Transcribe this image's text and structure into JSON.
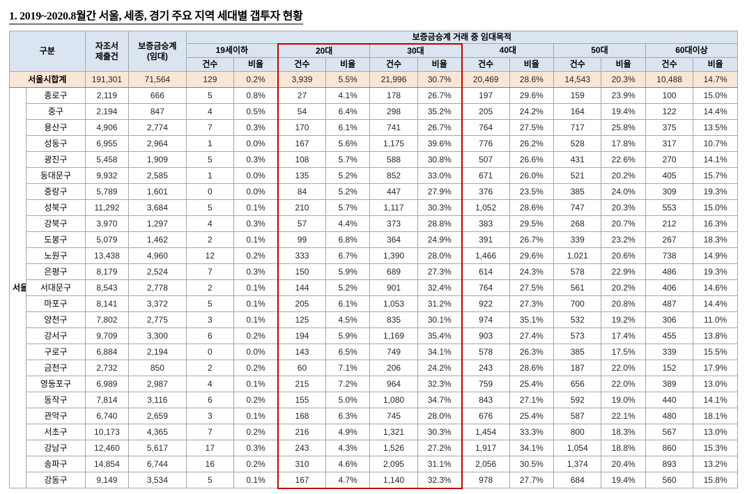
{
  "title": "1. 2019~2020.8월간 서울, 세종, 경기 주요 지역 세대별 갭투자 현황",
  "table": {
    "header": {
      "gubun": "구분",
      "report": "자조서\n제출건",
      "deposit": "보증금승계\n(임대)",
      "group_title": "보증금승계 거래 중 임대목적",
      "age_groups": [
        "19세이하",
        "20대",
        "30대",
        "40대",
        "50대",
        "60대이상"
      ],
      "sub_cols": [
        "건수",
        "비율"
      ]
    },
    "region_label": "서울",
    "header_color": "#dbe5f1",
    "highlight_color": "#fbe5d6",
    "red_box_color": "#c00000",
    "total_row": {
      "name": "서울시합계",
      "values": [
        "191,301",
        "71,564",
        "129",
        "0.2%",
        "3,939",
        "5.5%",
        "21,996",
        "30.7%",
        "20,469",
        "28.6%",
        "14,543",
        "20.3%",
        "10,488",
        "14.7%"
      ]
    },
    "rows": [
      {
        "name": "종로구",
        "values": [
          "2,119",
          "666",
          "5",
          "0.8%",
          "27",
          "4.1%",
          "178",
          "26.7%",
          "197",
          "29.6%",
          "159",
          "23.9%",
          "100",
          "15.0%"
        ]
      },
      {
        "name": "중구",
        "values": [
          "2,194",
          "847",
          "4",
          "0.5%",
          "54",
          "6.4%",
          "298",
          "35.2%",
          "205",
          "24.2%",
          "164",
          "19.4%",
          "122",
          "14.4%"
        ]
      },
      {
        "name": "용산구",
        "values": [
          "4,906",
          "2,774",
          "7",
          "0.3%",
          "170",
          "6.1%",
          "741",
          "26.7%",
          "764",
          "27.5%",
          "717",
          "25.8%",
          "375",
          "13.5%"
        ]
      },
      {
        "name": "성동구",
        "values": [
          "6,955",
          "2,964",
          "1",
          "0.0%",
          "167",
          "5.6%",
          "1,175",
          "39.6%",
          "776",
          "26.2%",
          "528",
          "17.8%",
          "317",
          "10.7%"
        ]
      },
      {
        "name": "광진구",
        "values": [
          "5,458",
          "1,909",
          "5",
          "0.3%",
          "108",
          "5.7%",
          "588",
          "30.8%",
          "507",
          "26.6%",
          "431",
          "22.6%",
          "270",
          "14.1%"
        ]
      },
      {
        "name": "동대문구",
        "values": [
          "9,932",
          "2,585",
          "1",
          "0.0%",
          "135",
          "5.2%",
          "852",
          "33.0%",
          "671",
          "26.0%",
          "521",
          "20.2%",
          "405",
          "15.7%"
        ]
      },
      {
        "name": "중랑구",
        "values": [
          "5,789",
          "1,601",
          "0",
          "0.0%",
          "84",
          "5.2%",
          "447",
          "27.9%",
          "376",
          "23.5%",
          "385",
          "24.0%",
          "309",
          "19.3%"
        ]
      },
      {
        "name": "성북구",
        "values": [
          "11,292",
          "3,684",
          "5",
          "0.1%",
          "210",
          "5.7%",
          "1,117",
          "30.3%",
          "1,052",
          "28.6%",
          "747",
          "20.3%",
          "553",
          "15.0%"
        ]
      },
      {
        "name": "강북구",
        "values": [
          "3,970",
          "1,297",
          "4",
          "0.3%",
          "57",
          "4.4%",
          "373",
          "28.8%",
          "383",
          "29.5%",
          "268",
          "20.7%",
          "212",
          "16.3%"
        ]
      },
      {
        "name": "도봉구",
        "values": [
          "5,079",
          "1,462",
          "2",
          "0.1%",
          "99",
          "6.8%",
          "364",
          "24.9%",
          "391",
          "26.7%",
          "339",
          "23.2%",
          "267",
          "18.3%"
        ]
      },
      {
        "name": "노원구",
        "values": [
          "13,438",
          "4,960",
          "12",
          "0.2%",
          "333",
          "6.7%",
          "1,390",
          "28.0%",
          "1,466",
          "29.6%",
          "1,021",
          "20.6%",
          "738",
          "14.9%"
        ]
      },
      {
        "name": "은평구",
        "values": [
          "8,179",
          "2,524",
          "7",
          "0.3%",
          "150",
          "5.9%",
          "689",
          "27.3%",
          "614",
          "24.3%",
          "578",
          "22.9%",
          "486",
          "19.3%"
        ]
      },
      {
        "name": "서대문구",
        "values": [
          "8,543",
          "2,778",
          "2",
          "0.1%",
          "144",
          "5.2%",
          "901",
          "32.4%",
          "764",
          "27.5%",
          "561",
          "20.2%",
          "406",
          "14.6%"
        ]
      },
      {
        "name": "마포구",
        "values": [
          "8,141",
          "3,372",
          "5",
          "0.1%",
          "205",
          "6.1%",
          "1,053",
          "31.2%",
          "922",
          "27.3%",
          "700",
          "20.8%",
          "487",
          "14.4%"
        ]
      },
      {
        "name": "양천구",
        "values": [
          "7,802",
          "2,775",
          "3",
          "0.1%",
          "125",
          "4.5%",
          "835",
          "30.1%",
          "974",
          "35.1%",
          "532",
          "19.2%",
          "306",
          "11.0%"
        ]
      },
      {
        "name": "강서구",
        "values": [
          "9,709",
          "3,300",
          "6",
          "0.2%",
          "194",
          "5.9%",
          "1,169",
          "35.4%",
          "903",
          "27.4%",
          "573",
          "17.4%",
          "455",
          "13.8%"
        ]
      },
      {
        "name": "구로구",
        "values": [
          "6,884",
          "2,194",
          "0",
          "0.0%",
          "143",
          "6.5%",
          "749",
          "34.1%",
          "578",
          "26.3%",
          "385",
          "17.5%",
          "339",
          "15.5%"
        ]
      },
      {
        "name": "금천구",
        "values": [
          "2,732",
          "850",
          "2",
          "0.2%",
          "60",
          "7.1%",
          "206",
          "24.2%",
          "243",
          "28.6%",
          "187",
          "22.0%",
          "152",
          "17.9%"
        ]
      },
      {
        "name": "영등포구",
        "values": [
          "6,989",
          "2,987",
          "4",
          "0.1%",
          "215",
          "7.2%",
          "964",
          "32.3%",
          "759",
          "25.4%",
          "656",
          "22.0%",
          "389",
          "13.0%"
        ]
      },
      {
        "name": "동작구",
        "values": [
          "7,814",
          "3,116",
          "6",
          "0.2%",
          "155",
          "5.0%",
          "1,080",
          "34.7%",
          "843",
          "27.1%",
          "592",
          "19.0%",
          "440",
          "14.1%"
        ]
      },
      {
        "name": "관악구",
        "values": [
          "6,740",
          "2,659",
          "3",
          "0.1%",
          "168",
          "6.3%",
          "745",
          "28.0%",
          "676",
          "25.4%",
          "587",
          "22.1%",
          "480",
          "18.1%"
        ]
      },
      {
        "name": "서초구",
        "values": [
          "10,173",
          "4,365",
          "7",
          "0.2%",
          "216",
          "4.9%",
          "1,321",
          "30.3%",
          "1,454",
          "33.3%",
          "800",
          "18.3%",
          "567",
          "13.0%"
        ]
      },
      {
        "name": "강남구",
        "values": [
          "12,460",
          "5,617",
          "17",
          "0.3%",
          "243",
          "4.3%",
          "1,526",
          "27.2%",
          "1,917",
          "34.1%",
          "1,054",
          "18.8%",
          "860",
          "15.3%"
        ]
      },
      {
        "name": "송파구",
        "values": [
          "14,854",
          "6,744",
          "16",
          "0.2%",
          "310",
          "4.6%",
          "2,095",
          "31.1%",
          "2,056",
          "30.5%",
          "1,374",
          "20.4%",
          "893",
          "13.2%"
        ]
      },
      {
        "name": "강동구",
        "values": [
          "9,149",
          "3,534",
          "5",
          "0.1%",
          "167",
          "4.7%",
          "1,140",
          "32.3%",
          "978",
          "27.7%",
          "684",
          "19.4%",
          "560",
          "15.8%"
        ]
      }
    ]
  }
}
